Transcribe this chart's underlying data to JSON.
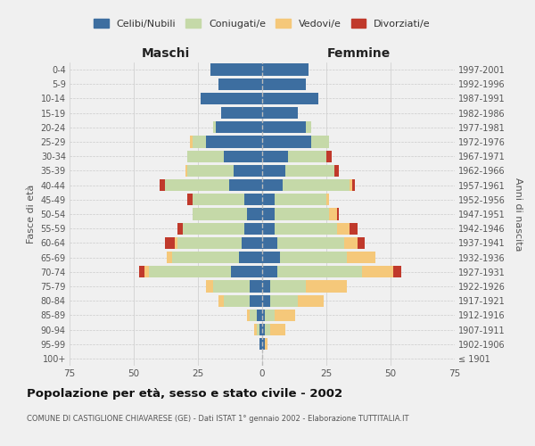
{
  "age_groups": [
    "100+",
    "95-99",
    "90-94",
    "85-89",
    "80-84",
    "75-79",
    "70-74",
    "65-69",
    "60-64",
    "55-59",
    "50-54",
    "45-49",
    "40-44",
    "35-39",
    "30-34",
    "25-29",
    "20-24",
    "15-19",
    "10-14",
    "5-9",
    "0-4"
  ],
  "birth_years": [
    "≤ 1901",
    "1902-1906",
    "1907-1911",
    "1912-1916",
    "1917-1921",
    "1922-1926",
    "1927-1931",
    "1932-1936",
    "1937-1941",
    "1942-1946",
    "1947-1951",
    "1952-1956",
    "1957-1961",
    "1962-1966",
    "1967-1971",
    "1972-1976",
    "1977-1981",
    "1982-1986",
    "1987-1991",
    "1992-1996",
    "1997-2001"
  ],
  "maschi": {
    "celibi": [
      0,
      1,
      1,
      2,
      5,
      5,
      12,
      9,
      8,
      7,
      6,
      7,
      13,
      11,
      15,
      22,
      18,
      16,
      24,
      17,
      20
    ],
    "coniugati": [
      0,
      0,
      1,
      3,
      10,
      14,
      32,
      26,
      25,
      24,
      21,
      20,
      25,
      18,
      14,
      5,
      1,
      0,
      0,
      0,
      0
    ],
    "vedovi": [
      0,
      0,
      1,
      1,
      2,
      3,
      2,
      2,
      1,
      0,
      0,
      0,
      0,
      1,
      0,
      1,
      0,
      0,
      0,
      0,
      0
    ],
    "divorziati": [
      0,
      0,
      0,
      0,
      0,
      0,
      2,
      0,
      4,
      2,
      0,
      2,
      2,
      0,
      0,
      0,
      0,
      0,
      0,
      0,
      0
    ]
  },
  "femmine": {
    "nubili": [
      0,
      1,
      1,
      1,
      3,
      3,
      6,
      7,
      6,
      5,
      5,
      5,
      8,
      9,
      10,
      19,
      17,
      14,
      22,
      17,
      18
    ],
    "coniugate": [
      0,
      0,
      2,
      4,
      11,
      14,
      33,
      26,
      26,
      24,
      21,
      20,
      26,
      19,
      15,
      7,
      2,
      0,
      0,
      0,
      0
    ],
    "vedove": [
      0,
      1,
      6,
      8,
      10,
      16,
      12,
      11,
      5,
      5,
      3,
      1,
      1,
      0,
      0,
      0,
      0,
      0,
      0,
      0,
      0
    ],
    "divorziate": [
      0,
      0,
      0,
      0,
      0,
      0,
      3,
      0,
      3,
      3,
      1,
      0,
      1,
      2,
      2,
      0,
      0,
      0,
      0,
      0,
      0
    ]
  },
  "color_celibi": "#3d6ea0",
  "color_coniugati": "#c5d9a8",
  "color_vedovi": "#f5c87a",
  "color_divorziati": "#c0392b",
  "xlim": 75,
  "title": "Popolazione per età, sesso e stato civile - 2002",
  "subtitle": "COMUNE DI CASTIGLIONE CHIAVARESE (GE) - Dati ISTAT 1° gennaio 2002 - Elaborazione TUTTITALIA.IT",
  "xlabel_left": "Maschi",
  "xlabel_right": "Femmine",
  "ylabel_left": "Fasce di età",
  "ylabel_right": "Anni di nascita",
  "legend_labels": [
    "Celibi/Nubili",
    "Coniugati/e",
    "Vedovi/e",
    "Divorziati/e"
  ],
  "bg_color": "#f0f0f0",
  "plot_bg": "#f0f0f0"
}
